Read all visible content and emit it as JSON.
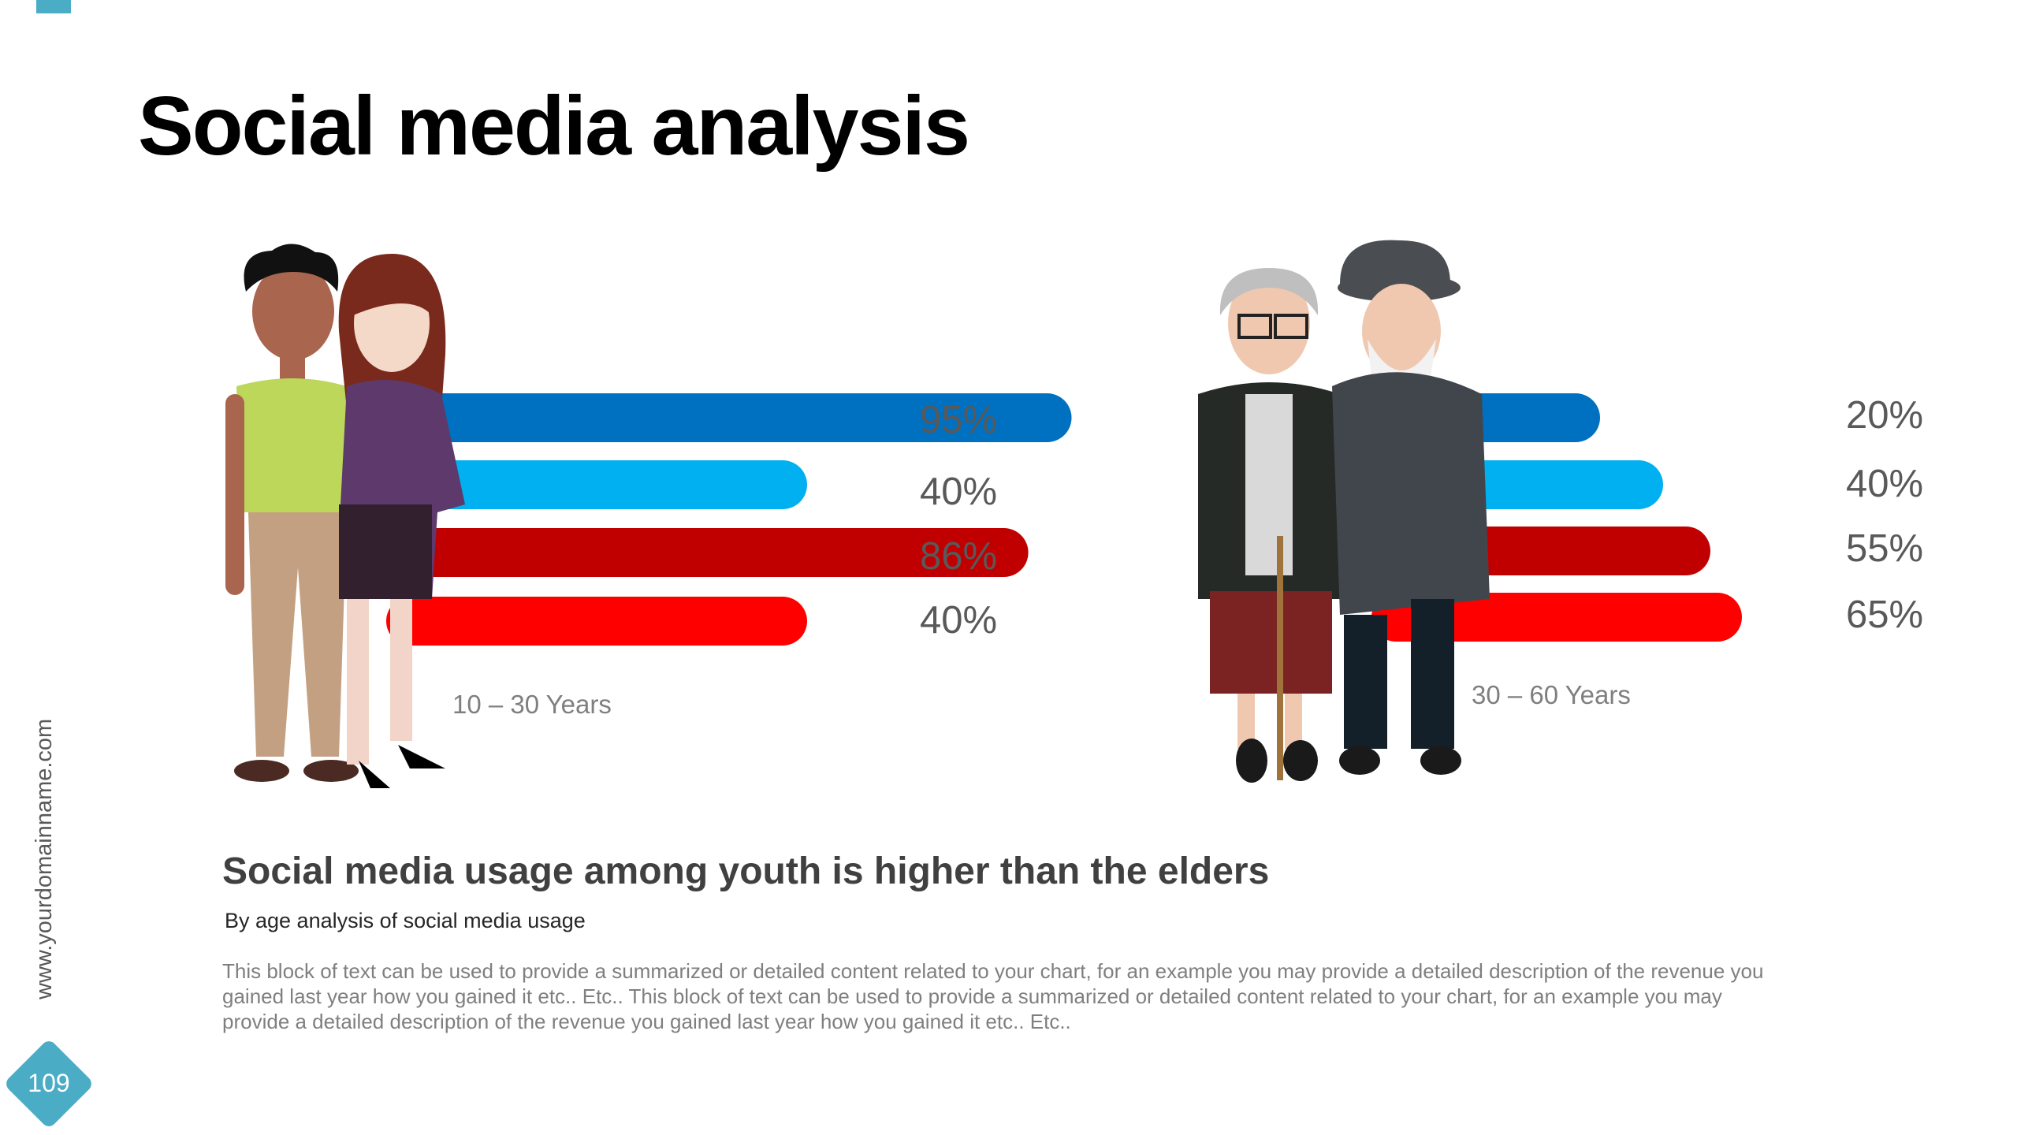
{
  "title": "Social media analysis",
  "website": "www.yourdomainname.com",
  "page_number": "109",
  "accent_color": "#4bacc6",
  "chart_data": [
    {
      "type": "bar",
      "orientation": "horizontal",
      "group_label": "10 – 30 Years",
      "values": [
        95,
        40,
        86,
        40
      ],
      "labels": [
        "95%",
        "40%",
        "86%",
        "40%"
      ],
      "colors": [
        "#0070c0",
        "#00b0f0",
        "#c00000",
        "#ff0000"
      ]
    },
    {
      "type": "bar",
      "orientation": "horizontal",
      "group_label": "30 – 60 Years",
      "values": [
        20,
        40,
        55,
        65
      ],
      "labels": [
        "20%",
        "40%",
        "55%",
        "65%"
      ],
      "colors": [
        "#0070c0",
        "#00b0f0",
        "#c00000",
        "#ff0000"
      ]
    }
  ],
  "heading": "Social media usage among youth is higher than the elders",
  "subheading": "By age analysis of social media usage",
  "body": "This block of text can be used to provide a summarized or detailed content related to your chart, for an example you may provide a detailed description of the revenue you gained last year how you gained it etc.. Etc.. This block of text can be used to provide a summarized or detailed content related to your chart, for an example you may provide a detailed description of the revenue you gained last year how you gained it etc.. Etc.."
}
